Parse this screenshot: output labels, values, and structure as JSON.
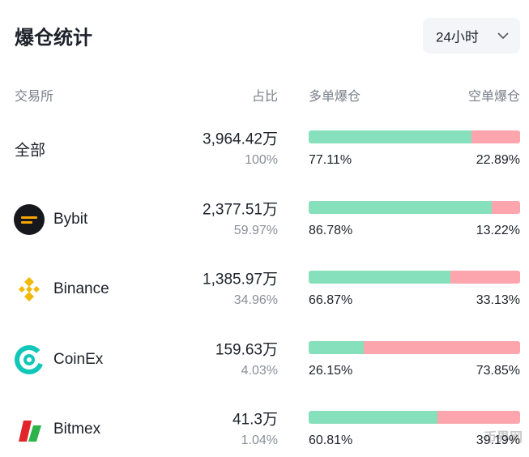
{
  "header": {
    "title": "爆仓统计",
    "dropdown": "24小时"
  },
  "table": {
    "columns": [
      "交易所",
      "占比",
      "多单爆仓",
      "空单爆仓"
    ],
    "rows": [
      {
        "name": "全部",
        "amount": "3,964.42万",
        "share": "100%",
        "long": "77.11%",
        "short": "22.89%"
      },
      {
        "name": "Bybit",
        "amount": "2,377.51万",
        "share": "59.97%",
        "long": "86.78%",
        "short": "13.22%"
      },
      {
        "name": "Binance",
        "amount": "1,385.97万",
        "share": "34.96%",
        "long": "66.87%",
        "short": "33.13%"
      },
      {
        "name": "CoinEx",
        "amount": "159.63万",
        "share": "4.03%",
        "long": "26.15%",
        "short": "73.85%"
      },
      {
        "name": "Bitmex",
        "amount": "41.3万",
        "share": "1.04%",
        "long": "60.81%",
        "short": "39.19%"
      }
    ]
  },
  "watermark": "币界网"
}
